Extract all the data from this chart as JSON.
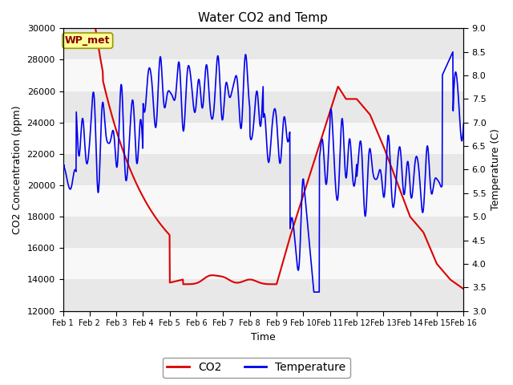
{
  "title": "Water CO2 and Temp",
  "xlabel": "Time",
  "ylabel_left": "CO2 Concentration (ppm)",
  "ylabel_right": "Temperature (C)",
  "annotation": "WP_met",
  "ylim_left": [
    12000,
    30000
  ],
  "ylim_right": [
    3.0,
    9.0
  ],
  "co2_color": "#dd0000",
  "temp_color": "#0000ee",
  "bg_gray": "#e8e8e8",
  "bg_white": "#f8f8f8",
  "legend_co2_label": "CO2",
  "legend_temp_label": "Temperature",
  "x_tick_labels": [
    "Feb 1",
    "Feb 2",
    "Feb 3",
    "Feb 4",
    "Feb 5",
    "Feb 6",
    "Feb 7",
    "Feb 8",
    "Feb 9",
    "Feb 10",
    "Feb 11",
    "Feb 12",
    "Feb 13",
    "Feb 14",
    "Feb 15",
    "Feb 16"
  ],
  "annotation_facecolor": "#ffff99",
  "annotation_edgecolor": "#999900",
  "annotation_textcolor": "#880000"
}
